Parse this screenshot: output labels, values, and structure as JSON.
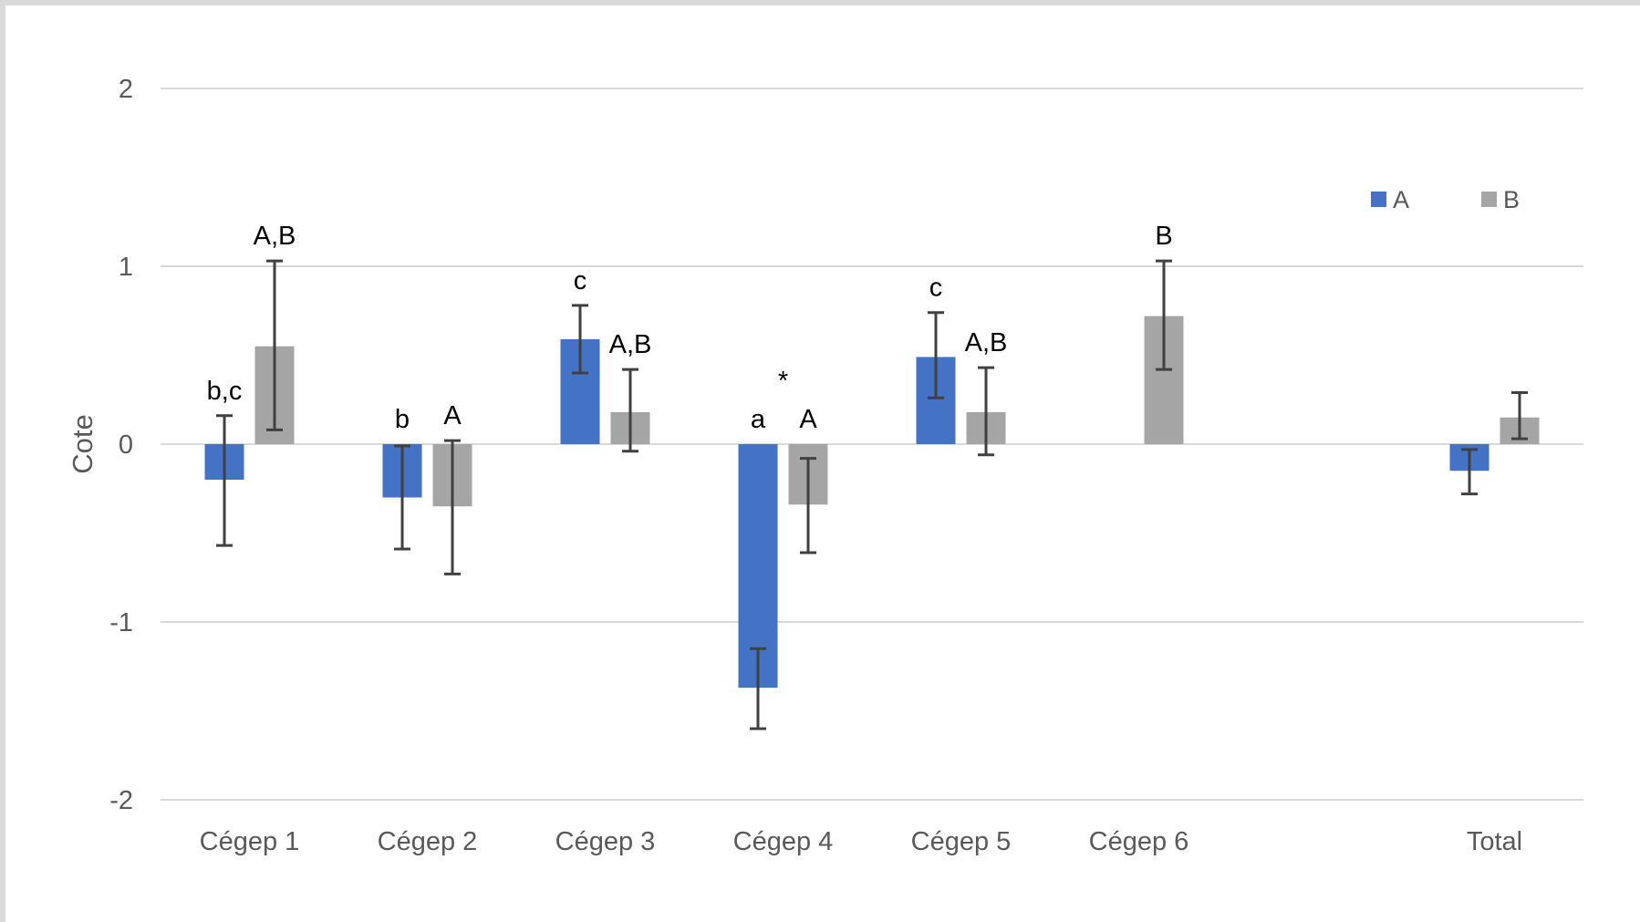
{
  "chart_data": {
    "type": "bar",
    "ylabel": "Cote",
    "xlabel": "",
    "ylim": [
      -2,
      2
    ],
    "yticks": [
      2,
      1,
      0,
      -1,
      -2
    ],
    "grid": true,
    "legend_position": "top-right",
    "categories": [
      "Cégep 1",
      "Cégep 2",
      "Cégep 3",
      "Cégep 4",
      "Cégep 5",
      "Cégep 6",
      "",
      "Total"
    ],
    "series": [
      {
        "name": "A",
        "color": "#4472c4",
        "values": [
          -0.2,
          -0.3,
          0.59,
          -1.37,
          0.49,
          null,
          null,
          -0.15
        ],
        "err_low": [
          -0.57,
          -0.59,
          0.4,
          -1.6,
          0.26,
          null,
          null,
          -0.28
        ],
        "err_high": [
          0.16,
          -0.01,
          0.78,
          -1.15,
          0.74,
          null,
          null,
          -0.03
        ],
        "labels": [
          "b,c",
          "b",
          "c",
          "a",
          "c",
          "",
          "",
          ""
        ]
      },
      {
        "name": "B",
        "color": "#a5a5a5",
        "values": [
          0.55,
          -0.35,
          0.18,
          -0.34,
          0.18,
          0.72,
          null,
          0.15
        ],
        "err_low": [
          0.08,
          -0.73,
          -0.04,
          -0.61,
          -0.06,
          0.42,
          null,
          0.03
        ],
        "err_high": [
          1.03,
          0.02,
          0.42,
          -0.08,
          0.43,
          1.03,
          null,
          0.29
        ],
        "labels": [
          "A,B",
          "A",
          "A,B",
          "A",
          "A,B",
          "B",
          "",
          ""
        ]
      }
    ],
    "annotations": [
      {
        "text": "*",
        "category": "Cégep 4",
        "y": 0.4
      }
    ]
  }
}
